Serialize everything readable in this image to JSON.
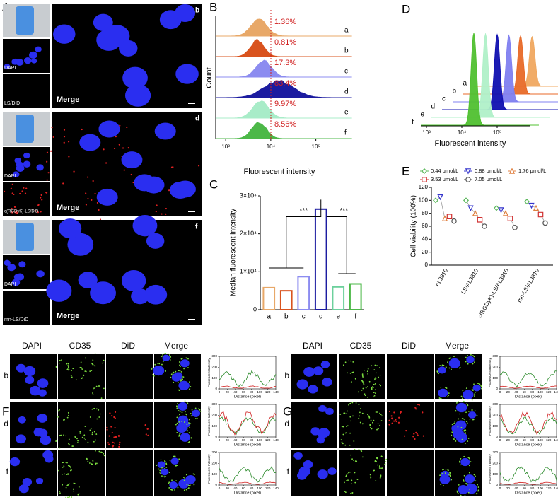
{
  "panel_a": {
    "letter": "A",
    "rows": [
      {
        "tag": "b",
        "dapi": "DAPI",
        "did": "LS/DiD",
        "merge": "Merge"
      },
      {
        "tag": "d",
        "dapi": "DAPI",
        "did": "c(RGDyK)-LS/DiD",
        "merge": "Merge"
      },
      {
        "tag": "f",
        "dapi": "DAPI",
        "did": "mn-LS/DiD",
        "merge": "Merge"
      }
    ]
  },
  "panel_b": {
    "letter": "B",
    "y_label": "Count",
    "x_label": "Fluorescent intensity",
    "log": true,
    "xlim": [
      600,
      400000
    ],
    "xticks": [
      {
        "value": 1000,
        "label": "10³"
      },
      {
        "value": 10000,
        "label": "10⁴"
      },
      {
        "value": 100000,
        "label": "10⁵"
      }
    ],
    "rows": [
      {
        "tag": "a",
        "label": "1.36%",
        "color": "#e8a868"
      },
      {
        "tag": "b",
        "label": "0.81%",
        "color": "#d9531e"
      },
      {
        "tag": "c",
        "label": "17.3%",
        "color": "#8c8cf0"
      },
      {
        "tag": "d",
        "label": "83.4%",
        "color": "#1c1ca0"
      },
      {
        "tag": "e",
        "label": "9.97%",
        "color": "#a8ecc8"
      },
      {
        "tag": "f",
        "label": "8.56%",
        "color": "#4cb848"
      }
    ]
  },
  "panel_c": {
    "letter": "C",
    "type": "bar",
    "y_label": "Median fluorescent intensity",
    "categories": [
      "a",
      "b",
      "c",
      "d",
      "e",
      "f"
    ],
    "values": [
      5800,
      5000,
      8700,
      26500,
      6000,
      6800
    ],
    "colors": [
      "#e8a868",
      "#d9531e",
      "#8c8cf0",
      "#1c1ca0",
      "#6cd09c",
      "#4cb848"
    ],
    "ylim": [
      0,
      30000
    ],
    "yticks": [
      0,
      {
        "value": 10000,
        "label": "1×10⁴"
      },
      {
        "value": 20000,
        "label": "2×10⁴"
      },
      {
        "value": 30000,
        "label": "3×10⁴"
      }
    ],
    "significance": [
      "***",
      "***"
    ]
  },
  "panel_d": {
    "letter": "D",
    "x_label": "Fluorescent intensity",
    "tags": [
      "a",
      "b",
      "c",
      "d",
      "e",
      "f"
    ],
    "colors": [
      "#f0a860",
      "#e86a28",
      "#8080f0",
      "#1010b0",
      "#b0f0c8",
      "#50c030"
    ],
    "xticks": [
      {
        "value": 1000,
        "label": "10³"
      },
      {
        "value": 10000,
        "label": "10⁴"
      },
      {
        "value": 100000,
        "label": "10⁵"
      }
    ]
  },
  "panel_e": {
    "letter": "E",
    "type": "scatter",
    "y_label": "Cell viability (100%)",
    "categories": [
      "AL3810",
      "LS/AL3810",
      "c(RGDyK)-LS/AL3810",
      "mn-LS/AL3810"
    ],
    "ylim": [
      0,
      120
    ],
    "yticks": [
      0,
      20,
      40,
      60,
      80,
      100,
      120
    ],
    "series": [
      {
        "name": "0.44 μmol/L",
        "color": "#5cb85c",
        "marker": "diamond",
        "values": [
          100,
          100,
          88,
          98
        ]
      },
      {
        "name": "0.88 μmol/L",
        "color": "#3333cc",
        "marker": "triangle-down",
        "values": [
          105,
          88,
          85,
          92
        ]
      },
      {
        "name": "1.76 μmol/L",
        "color": "#e08040",
        "marker": "triangle",
        "values": [
          72,
          80,
          80,
          88
        ]
      },
      {
        "name": "3.53 μmol/L",
        "color": "#d03030",
        "marker": "square",
        "values": [
          75,
          70,
          72,
          78
        ]
      },
      {
        "name": "7.05 μmol/L",
        "color": "#555555",
        "marker": "circle",
        "values": [
          68,
          60,
          58,
          65
        ]
      }
    ]
  },
  "panel_f": {
    "letter": "F",
    "columns": [
      "DAPI",
      "CD35",
      "DiD",
      "Merge"
    ],
    "rows": [
      "b",
      "d",
      "f"
    ],
    "y_label": "Fluorescent Intensity",
    "x_label": "Distance (pixel)",
    "xticks": [
      0,
      20,
      40,
      60,
      80,
      100,
      120,
      140
    ],
    "yticks": [
      0,
      100,
      200,
      300
    ]
  },
  "panel_g": {
    "letter": "G",
    "columns": [
      "DAPI",
      "CD35",
      "DiD",
      "Merge"
    ],
    "rows": [
      "b",
      "d",
      "f"
    ],
    "y_label": "Fluorescent Intensity",
    "x_label": "Distance (pixel)",
    "xticks": [
      0,
      20,
      40,
      60,
      80,
      100,
      120,
      140
    ],
    "yticks": [
      0,
      100,
      200,
      300
    ]
  }
}
